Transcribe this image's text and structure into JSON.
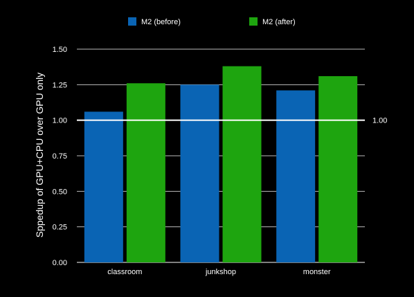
{
  "chart_data": {
    "type": "bar",
    "title": "",
    "xlabel": "",
    "ylabel": "Sppedup of GPU+CPU over GPU only",
    "categories": [
      "classroom",
      "junkshop",
      "monster"
    ],
    "series": [
      {
        "name": "M2 (before)",
        "color": "#0a64b4",
        "values": [
          1.06,
          1.25,
          1.21
        ]
      },
      {
        "name": "M2 (after)",
        "color": "#1ea50f",
        "values": [
          1.26,
          1.38,
          1.31
        ]
      }
    ],
    "ylim": [
      0,
      1.5
    ],
    "yticks": [
      "0.00",
      "0.25",
      "0.50",
      "0.75",
      "1.00",
      "1.25",
      "1.50"
    ],
    "grid": true,
    "legend_position": "top",
    "reference_line": {
      "value": 1.0,
      "label": "1.00",
      "color": "#ffffff"
    }
  }
}
